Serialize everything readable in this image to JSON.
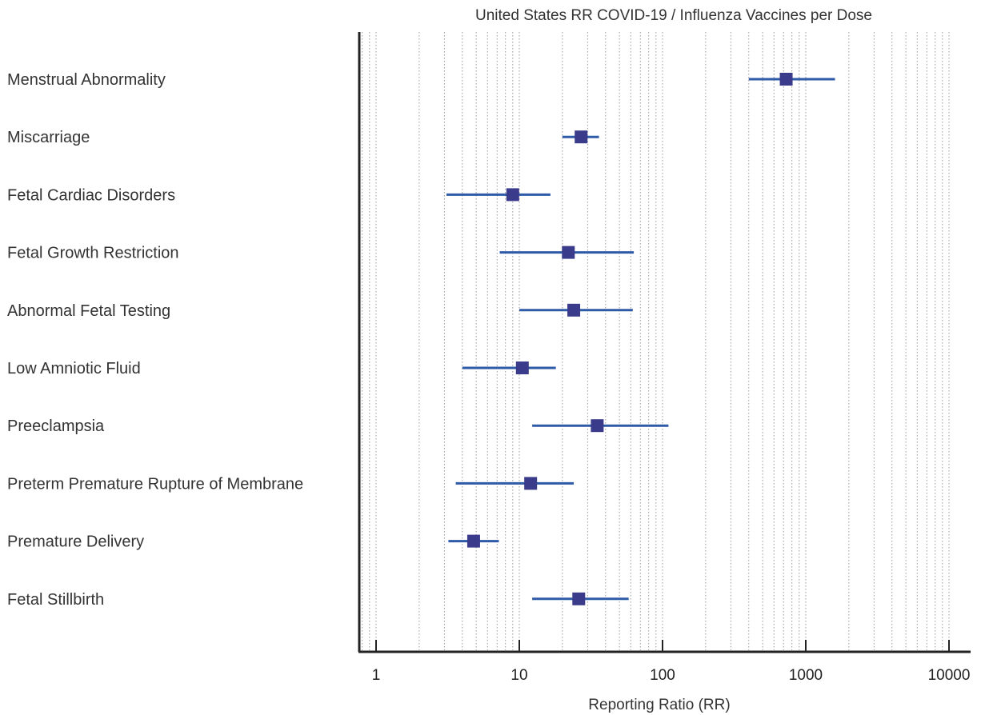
{
  "chart_data": {
    "type": "scatter",
    "title": "United States RR COVID-19 / Influenza Vaccines per Dose",
    "xlabel": "Reporting Ratio (RR)",
    "ylabel": "",
    "xscale": "log",
    "xlim": [
      0.8,
      13000
    ],
    "x_ticks": [
      1,
      10,
      100,
      1000,
      10000
    ],
    "x_tick_labels": [
      "1",
      "10",
      "100",
      "1000",
      "10000"
    ],
    "grid": "vertical dotted minor gridlines",
    "colors": {
      "marker": "#3b3b8c",
      "errorbar": "#2e5aa8"
    },
    "categories": [
      "Menstrual Abnormality",
      "Miscarriage",
      "Fetal Cardiac Disorders",
      "Fetal Growth Restriction",
      "Abnormal Fetal Testing",
      "Low Amniotic Fluid",
      "Preeclampsia",
      "Preterm Premature Rupture of Membrane",
      "Premature Delivery",
      "Fetal Stillbirth"
    ],
    "series": [
      {
        "point": [
          730,
          27,
          9,
          22,
          24,
          10.5,
          35,
          12,
          4.8,
          26
        ],
        "lower": [
          400,
          20,
          3.1,
          7.3,
          10,
          4.0,
          12.3,
          3.6,
          3.2,
          12.3
        ],
        "upper": [
          1600,
          36,
          16.5,
          63,
          62,
          18,
          110,
          24,
          7.2,
          58
        ]
      }
    ]
  }
}
